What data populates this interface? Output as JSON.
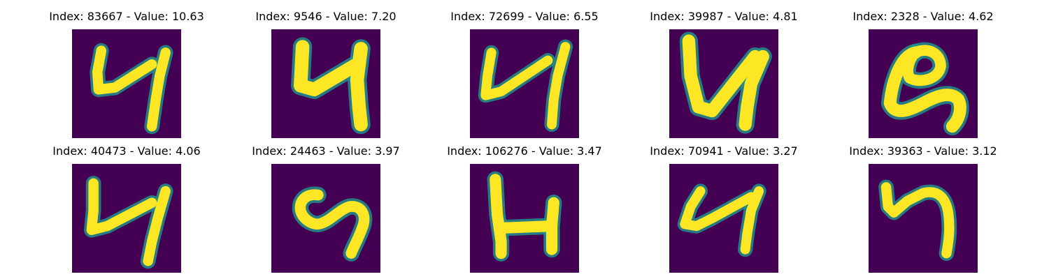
{
  "colors": {
    "background": "#440154",
    "stroke": "#fde725",
    "edge_mid": "#21918c",
    "edge_light": "#5ec962"
  },
  "panels": [
    {
      "title": "Index: 83667 - Value: 10.63",
      "glyph": "four-open-a"
    },
    {
      "title": "Index: 9546 - Value: 7.20",
      "glyph": "four-bold"
    },
    {
      "title": "Index: 72699 - Value: 6.55",
      "glyph": "four-open-b"
    },
    {
      "title": "Index: 39987 - Value: 4.81",
      "glyph": "four-wide"
    },
    {
      "title": "Index: 2328 - Value: 4.62",
      "glyph": "loop-curl"
    },
    {
      "title": "Index: 40473 - Value: 4.06",
      "glyph": "four-open-c"
    },
    {
      "title": "Index: 24463 - Value: 3.97",
      "glyph": "curly-s"
    },
    {
      "title": "Index: 106276 - Value: 3.47",
      "glyph": "h-shape"
    },
    {
      "title": "Index: 70941 - Value: 3.27",
      "glyph": "four-small"
    },
    {
      "title": "Index: 39363 - Value: 3.12",
      "glyph": "hook-n"
    }
  ]
}
